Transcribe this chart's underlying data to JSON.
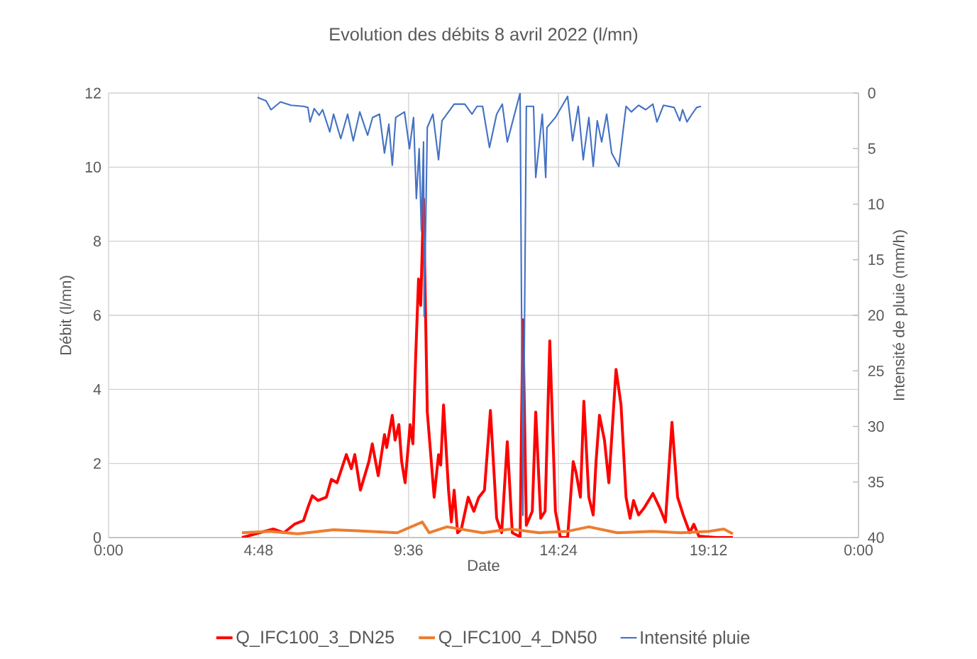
{
  "chart_data": {
    "type": "line",
    "title": "Evolution des débits 8 avril 2022 (l/mn)",
    "xlabel": "Date",
    "ylabel": "Débit (l/mn)",
    "y2label": "Intensité de pluie (mm/h)",
    "xlim": [
      0,
      24
    ],
    "xticks": [
      {
        "value": 0,
        "label": "0:00"
      },
      {
        "value": 4.8,
        "label": "4:48"
      },
      {
        "value": 9.6,
        "label": "9:36"
      },
      {
        "value": 14.4,
        "label": "14:24"
      },
      {
        "value": 19.2,
        "label": "19:12"
      },
      {
        "value": 24,
        "label": "0:00"
      }
    ],
    "ylim": [
      0,
      12
    ],
    "yticks": [
      0,
      2,
      4,
      6,
      8,
      10,
      12
    ],
    "y2lim": [
      40,
      0
    ],
    "y2ticks": [
      0,
      5,
      10,
      15,
      20,
      25,
      30,
      35,
      40
    ],
    "grid": true,
    "legend": "bottom",
    "series": [
      {
        "name": "Q_IFC100_3_DN25",
        "color": "#ff0000",
        "x": [
          4.27,
          5.27,
          5.61,
          5.95,
          6.24,
          6.4,
          6.52,
          6.7,
          6.97,
          7.13,
          7.31,
          7.61,
          7.77,
          7.88,
          8.06,
          8.33,
          8.44,
          8.63,
          8.83,
          8.9,
          9.08,
          9.17,
          9.29,
          9.38,
          9.49,
          9.65,
          9.74,
          9.83,
          9.92,
          9.99,
          10.08,
          10.2,
          10.42,
          10.56,
          10.63,
          10.72,
          10.88,
          10.97,
          11.06,
          11.17,
          11.29,
          11.51,
          11.69,
          11.85,
          12.03,
          12.22,
          12.42,
          12.58,
          12.76,
          12.92,
          13.17,
          13.26,
          13.37,
          13.56,
          13.67,
          13.83,
          13.97,
          14.12,
          14.3,
          14.46,
          14.69,
          14.87,
          14.96,
          15.1,
          15.21,
          15.37,
          15.51,
          15.6,
          15.71,
          15.87,
          16.01,
          16.24,
          16.4,
          16.56,
          16.69,
          16.8,
          16.96,
          17.14,
          17.42,
          17.64,
          17.82,
          18.03,
          18.21,
          18.39,
          18.6,
          18.73,
          18.89,
          19.46,
          19.98
        ],
        "values": [
          0,
          0.23,
          0.13,
          0.36,
          0.46,
          0.86,
          1.13,
          1,
          1.09,
          1.57,
          1.48,
          2.24,
          1.86,
          2.24,
          1.28,
          2.05,
          2.53,
          1.67,
          2.78,
          2.43,
          3.3,
          2.63,
          3.05,
          2.05,
          1.48,
          3.05,
          2.53,
          4.93,
          6.98,
          6.27,
          9.14,
          3.39,
          1.09,
          2.24,
          1.96,
          3.58,
          1.28,
          0.42,
          1.28,
          0.13,
          0.23,
          1.09,
          0.71,
          1.09,
          1.28,
          3.43,
          0.52,
          0.13,
          2.59,
          0.13,
          0.02,
          5.88,
          0.33,
          0.71,
          3.39,
          0.52,
          0.71,
          5.31,
          0.71,
          0,
          0,
          2.05,
          1.76,
          1.09,
          3.68,
          1.09,
          0.61,
          2.05,
          3.3,
          2.63,
          1.48,
          4.54,
          3.58,
          1.09,
          0.52,
          1,
          0.61,
          0.8,
          1.19,
          0.8,
          0.42,
          3.11,
          1.09,
          0.61,
          0.13,
          0.36,
          0.04,
          0,
          0
        ]
      },
      {
        "name": "Q_IFC100_4_DN50",
        "color": "#ed7d31",
        "x": [
          4.27,
          5.15,
          6.06,
          7.2,
          8.33,
          9.24,
          10.04,
          10.26,
          10.83,
          11.97,
          12.87,
          13.78,
          14.69,
          15.37,
          16.28,
          17.42,
          18.32,
          19.23,
          19.69,
          19.98
        ],
        "values": [
          0.13,
          0.17,
          0.1,
          0.21,
          0.17,
          0.13,
          0.42,
          0.13,
          0.29,
          0.13,
          0.23,
          0.13,
          0.17,
          0.29,
          0.13,
          0.17,
          0.13,
          0.17,
          0.23,
          0.1
        ]
      },
      {
        "name": "Intensité pluie",
        "color": "#4472c4",
        "axis": "y2",
        "x": [
          4.77,
          5.04,
          5.2,
          5.5,
          5.84,
          6.24,
          6.38,
          6.45,
          6.58,
          6.74,
          6.85,
          7.08,
          7.2,
          7.43,
          7.65,
          7.83,
          8.04,
          8.29,
          8.45,
          8.67,
          8.83,
          8.97,
          9.08,
          9.19,
          9.47,
          9.63,
          9.76,
          9.85,
          9.94,
          10.01,
          10.08,
          10.1,
          10.2,
          10.38,
          10.56,
          10.67,
          11.06,
          11.4,
          11.63,
          11.79,
          11.97,
          12.19,
          12.42,
          12.6,
          12.76,
          13.17,
          13.26,
          13.37,
          13.6,
          13.67,
          13.88,
          13.99,
          14.03,
          14.3,
          14.69,
          14.85,
          15.03,
          15.19,
          15.37,
          15.51,
          15.64,
          15.78,
          15.94,
          16.1,
          16.33,
          16.56,
          16.73,
          16.96,
          17.19,
          17.42,
          17.55,
          17.76,
          18.1,
          18.28,
          18.37,
          18.51,
          18.67,
          18.82,
          18.96
        ],
        "values": [
          0.4,
          0.7,
          1.5,
          0.8,
          1.1,
          1.2,
          1.3,
          2.6,
          1.4,
          2,
          1.5,
          3.5,
          1.9,
          4.1,
          1.9,
          4.3,
          1.7,
          3.8,
          2.2,
          1.9,
          5.4,
          2.8,
          6.5,
          2.2,
          1.7,
          5,
          2.2,
          9.5,
          5,
          12.4,
          4.4,
          20.1,
          3.1,
          1.9,
          6,
          2.5,
          1,
          1,
          1.9,
          1.2,
          1.2,
          4.9,
          1.9,
          1,
          4.4,
          0,
          38,
          1.2,
          1.2,
          7.6,
          1.9,
          7.6,
          3.1,
          2.2,
          0.3,
          4.3,
          1.2,
          6,
          2.2,
          6.6,
          2.5,
          4.4,
          1.9,
          5.4,
          6.6,
          1.2,
          1.7,
          1.1,
          1.5,
          1,
          2.6,
          1.1,
          1.3,
          2.5,
          1.5,
          2.6,
          1.9,
          1.3,
          1.2
        ]
      }
    ]
  }
}
